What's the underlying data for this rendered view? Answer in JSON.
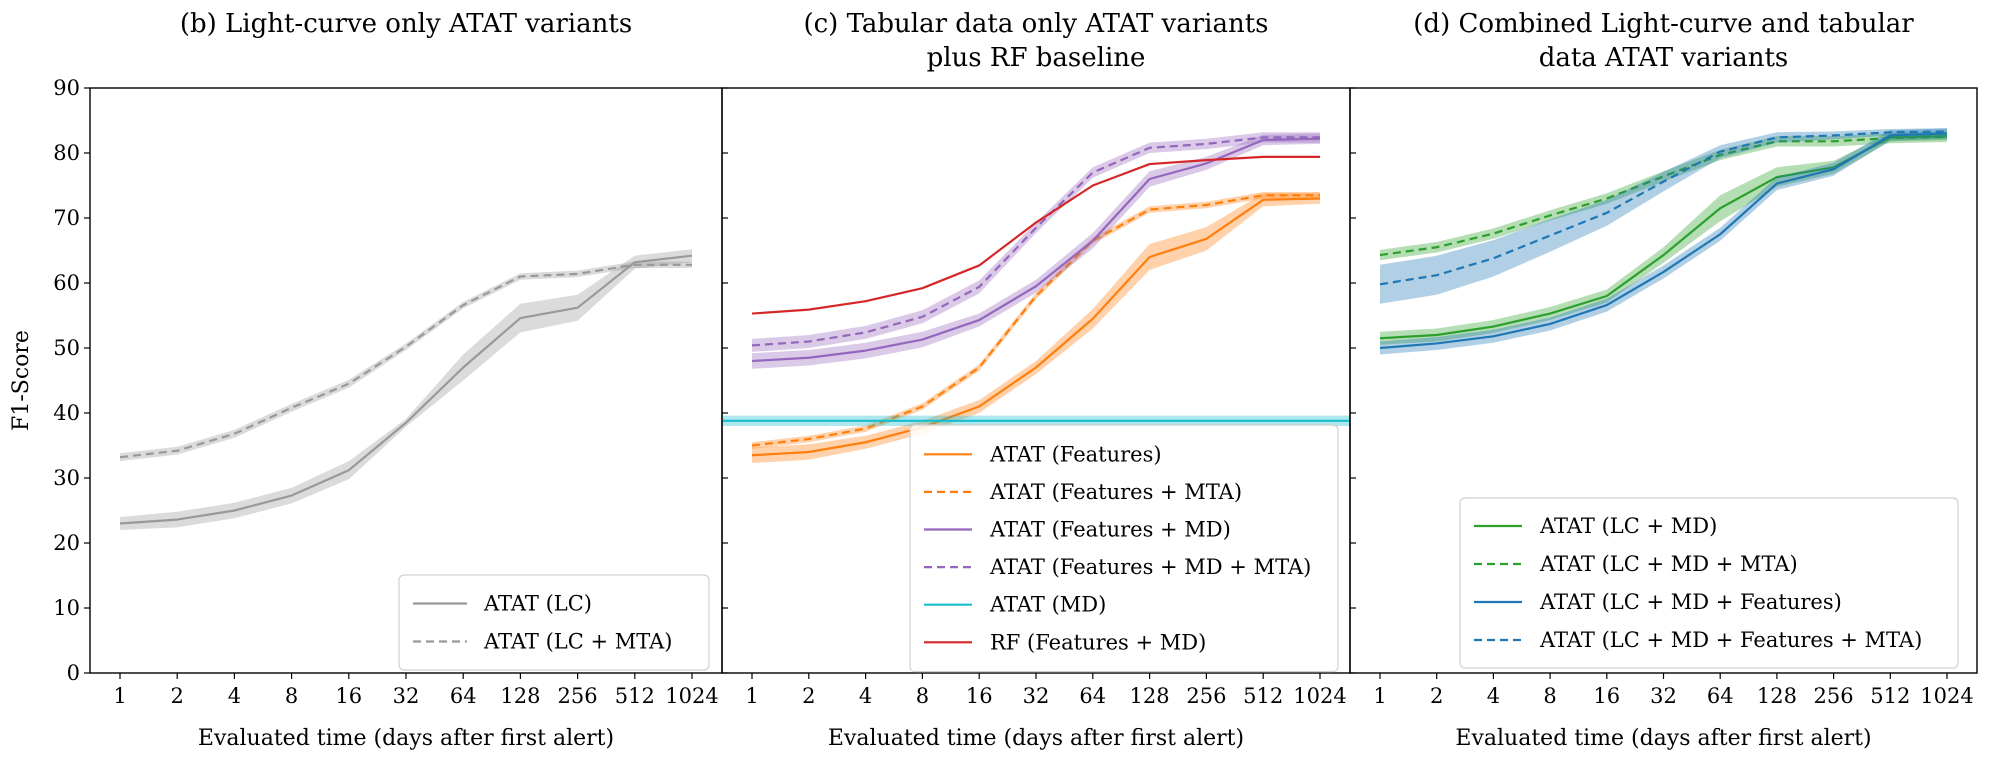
{
  "figure": {
    "ylabel": "F1-Score",
    "xlabel": "Evaluated time (days after first alert)"
  },
  "chart_data": [
    {
      "type": "line",
      "title_lines": [
        "(b) Light-curve only ATAT variants"
      ],
      "xlabel": "Evaluated time (days after first alert)",
      "ylabel": "F1-Score",
      "x_scale": "log2",
      "x": [
        1,
        2,
        4,
        8,
        16,
        32,
        64,
        128,
        256,
        512,
        1024
      ],
      "ylim": [
        0,
        90
      ],
      "yticks": [
        0,
        10,
        20,
        30,
        40,
        50,
        60,
        70,
        80,
        90
      ],
      "grid": false,
      "legend_position": "lower-right",
      "series": [
        {
          "name": "ATAT (LC)",
          "color": "#999999",
          "dash": "solid",
          "values": [
            23.0,
            23.6,
            25.0,
            27.3,
            31.2,
            38.5,
            47.0,
            54.6,
            56.2,
            63.2,
            64.2
          ],
          "band": [
            1.0,
            1.2,
            1.2,
            1.2,
            1.4,
            0.6,
            2.0,
            2.2,
            2.0,
            1.0,
            1.0
          ]
        },
        {
          "name": "ATAT (LC + MTA)",
          "color": "#999999",
          "dash": "dashed",
          "values": [
            33.2,
            34.2,
            36.8,
            40.8,
            44.5,
            50.2,
            56.6,
            61.0,
            61.4,
            62.8,
            62.8
          ],
          "band": [
            0.6,
            0.6,
            0.6,
            0.6,
            0.6,
            0.5,
            0.5,
            0.5,
            0.5,
            0.5,
            0.5
          ]
        }
      ]
    },
    {
      "type": "line",
      "title_lines": [
        "(c) Tabular data only ATAT variants",
        "plus RF baseline"
      ],
      "xlabel": "Evaluated time (days after first alert)",
      "x_scale": "log2",
      "x": [
        1,
        2,
        4,
        8,
        16,
        32,
        64,
        128,
        256,
        512,
        1024
      ],
      "ylim": [
        0,
        90
      ],
      "grid": false,
      "legend_position": "lower-right",
      "series": [
        {
          "name": "ATAT (Features)",
          "color": "#ff7f0e",
          "dash": "solid",
          "values": [
            33.5,
            34.0,
            35.5,
            37.8,
            41.0,
            47.0,
            54.5,
            64.0,
            66.8,
            72.8,
            73.0
          ],
          "band": [
            1.2,
            1.2,
            1.0,
            1.0,
            1.0,
            1.0,
            1.5,
            2.0,
            1.8,
            1.0,
            0.8
          ]
        },
        {
          "name": "ATAT (Features + MTA)",
          "color": "#ff7f0e",
          "dash": "dashed",
          "values": [
            35.0,
            36.0,
            37.6,
            41.0,
            47.0,
            58.0,
            66.5,
            71.3,
            72.0,
            73.5,
            73.5
          ],
          "band": [
            0.5,
            0.5,
            0.5,
            0.5,
            0.5,
            0.5,
            0.5,
            0.5,
            0.5,
            0.5,
            0.5
          ]
        },
        {
          "name": "ATAT (Features + MD)",
          "color": "#9467bd",
          "dash": "solid",
          "values": [
            48.0,
            48.5,
            49.6,
            51.3,
            54.3,
            59.5,
            66.5,
            76.0,
            78.4,
            82.0,
            82.2
          ],
          "band": [
            1.2,
            1.2,
            1.2,
            1.2,
            1.0,
            1.0,
            1.2,
            1.2,
            1.0,
            0.8,
            0.8
          ]
        },
        {
          "name": "ATAT (Features + MD + MTA)",
          "color": "#9467bd",
          "dash": "dashed",
          "values": [
            50.4,
            51.0,
            52.4,
            54.8,
            59.4,
            68.5,
            77.0,
            80.8,
            81.4,
            82.4,
            82.4
          ],
          "band": [
            1.0,
            1.0,
            1.0,
            1.0,
            1.0,
            0.8,
            0.8,
            0.8,
            0.8,
            0.8,
            0.8
          ]
        },
        {
          "name": "ATAT (MD)",
          "color": "#17becf",
          "dash": "solid",
          "values": [
            38.8,
            38.8,
            38.8,
            38.8,
            38.8,
            38.8,
            38.8,
            38.8,
            38.8,
            38.8,
            38.8
          ],
          "band": [
            0.8,
            0.8,
            0.8,
            0.8,
            0.8,
            0.8,
            0.8,
            0.8,
            0.8,
            0.8,
            0.8
          ],
          "extends_full_width": true
        },
        {
          "name": "RF (Features + MD)",
          "color": "#d62728",
          "dash": "solid",
          "values": [
            55.3,
            55.9,
            57.2,
            59.2,
            62.7,
            69.3,
            75.0,
            78.3,
            78.9,
            79.4,
            79.4
          ],
          "band": null
        }
      ]
    },
    {
      "type": "line",
      "title_lines": [
        "(d) Combined Light-curve and tabular",
        "data ATAT variants"
      ],
      "xlabel": "Evaluated time (days after first alert)",
      "x_scale": "log2",
      "x": [
        1,
        2,
        4,
        8,
        16,
        32,
        64,
        128,
        256,
        512,
        1024
      ],
      "ylim": [
        0,
        90
      ],
      "grid": false,
      "legend_position": "lower-right",
      "series": [
        {
          "name": "ATAT (LC + MD)",
          "color": "#2ca02c",
          "dash": "solid",
          "values": [
            51.5,
            52.0,
            53.3,
            55.3,
            58.0,
            64.3,
            71.5,
            76.3,
            77.8,
            82.4,
            82.6
          ],
          "band": [
            1.0,
            1.0,
            1.0,
            1.0,
            1.0,
            1.2,
            2.0,
            1.5,
            1.0,
            0.6,
            0.6
          ]
        },
        {
          "name": "ATAT (LC + MD + MTA)",
          "color": "#2ca02c",
          "dash": "dashed",
          "values": [
            64.3,
            65.5,
            67.6,
            70.4,
            73.0,
            76.4,
            79.7,
            81.8,
            81.8,
            82.3,
            82.5
          ],
          "band": [
            0.8,
            0.8,
            0.8,
            0.8,
            0.8,
            0.8,
            0.8,
            0.8,
            0.8,
            0.8,
            0.8
          ]
        },
        {
          "name": "ATAT (LC + MD + Features)",
          "color": "#1f77b4",
          "dash": "solid",
          "values": [
            50.0,
            50.7,
            51.8,
            53.7,
            56.6,
            61.7,
            67.5,
            75.3,
            77.5,
            82.7,
            83.0
          ],
          "band": [
            1.0,
            1.0,
            1.0,
            1.0,
            1.0,
            1.0,
            1.0,
            1.0,
            1.0,
            0.8,
            0.8
          ]
        },
        {
          "name": "ATAT (LC + MD + Features + MTA)",
          "color": "#1f77b4",
          "dash": "dashed",
          "values": [
            59.8,
            61.2,
            63.8,
            67.3,
            70.8,
            75.6,
            80.2,
            82.4,
            82.7,
            83.2,
            83.3
          ],
          "band": [
            3.0,
            3.0,
            2.8,
            2.5,
            2.0,
            1.5,
            1.0,
            0.8,
            0.6,
            0.5,
            0.5
          ]
        }
      ]
    }
  ]
}
